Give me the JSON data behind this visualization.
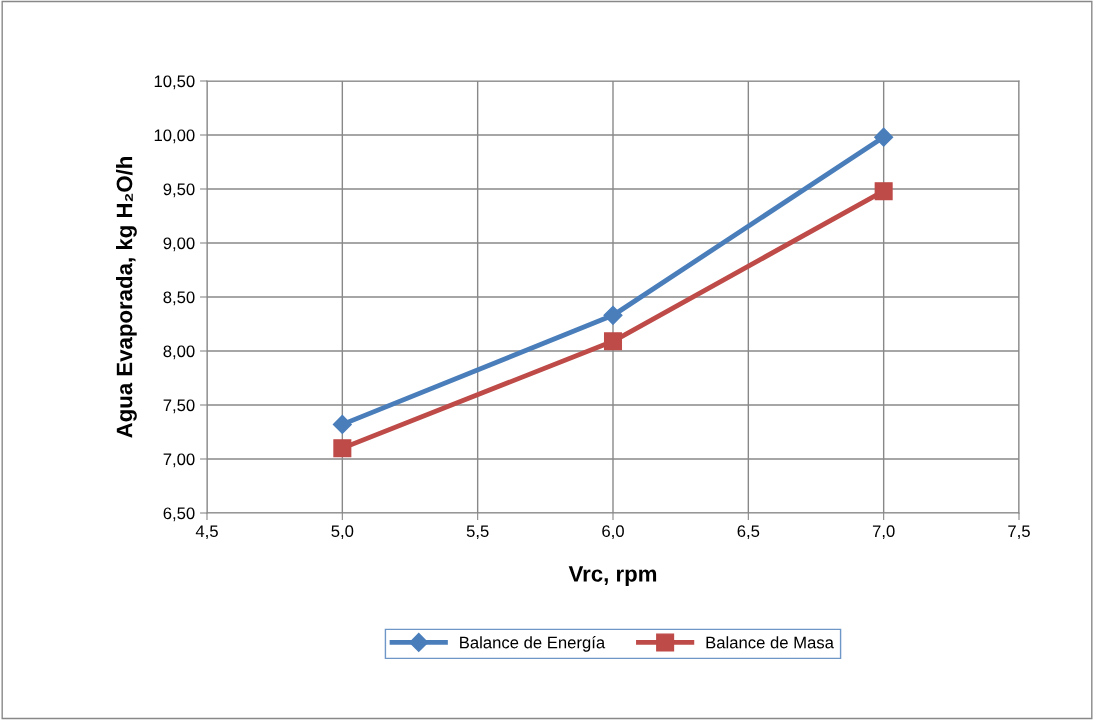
{
  "chart_data": {
    "type": "line",
    "xlabel": "Vrc, rpm",
    "ylabel": "Agua Evaporada, kg H₂O/h",
    "x": [
      5.0,
      6.0,
      7.0
    ],
    "series": [
      {
        "name": "Balance de Energía",
        "color": "#4a7ebb",
        "marker": "diamond",
        "values": [
          7.32,
          8.33,
          9.98
        ]
      },
      {
        "name": "Balance de Masa",
        "color": "#be4b48",
        "marker": "square",
        "values": [
          7.1,
          8.09,
          9.48
        ]
      }
    ],
    "xlim": [
      4.5,
      7.5
    ],
    "xticks": [
      {
        "value": 4.5,
        "label": "4,5"
      },
      {
        "value": 5.0,
        "label": "5,0"
      },
      {
        "value": 5.5,
        "label": "5,5"
      },
      {
        "value": 6.0,
        "label": "6,0"
      },
      {
        "value": 6.5,
        "label": "6,5"
      },
      {
        "value": 7.0,
        "label": "7,0"
      },
      {
        "value": 7.5,
        "label": "7,5"
      }
    ],
    "ylim": [
      6.5,
      10.5
    ],
    "yticks": [
      {
        "value": 6.5,
        "label": "6,50"
      },
      {
        "value": 7.0,
        "label": "7,00"
      },
      {
        "value": 7.5,
        "label": "7,50"
      },
      {
        "value": 8.0,
        "label": "8,00"
      },
      {
        "value": 8.5,
        "label": "8,50"
      },
      {
        "value": 9.0,
        "label": "9,00"
      },
      {
        "value": 9.5,
        "label": "9,50"
      },
      {
        "value": 10.0,
        "label": "10,00"
      },
      {
        "value": 10.5,
        "label": "10,50"
      }
    ],
    "grid": true,
    "legend": "bottom",
    "line_style": "solid"
  }
}
